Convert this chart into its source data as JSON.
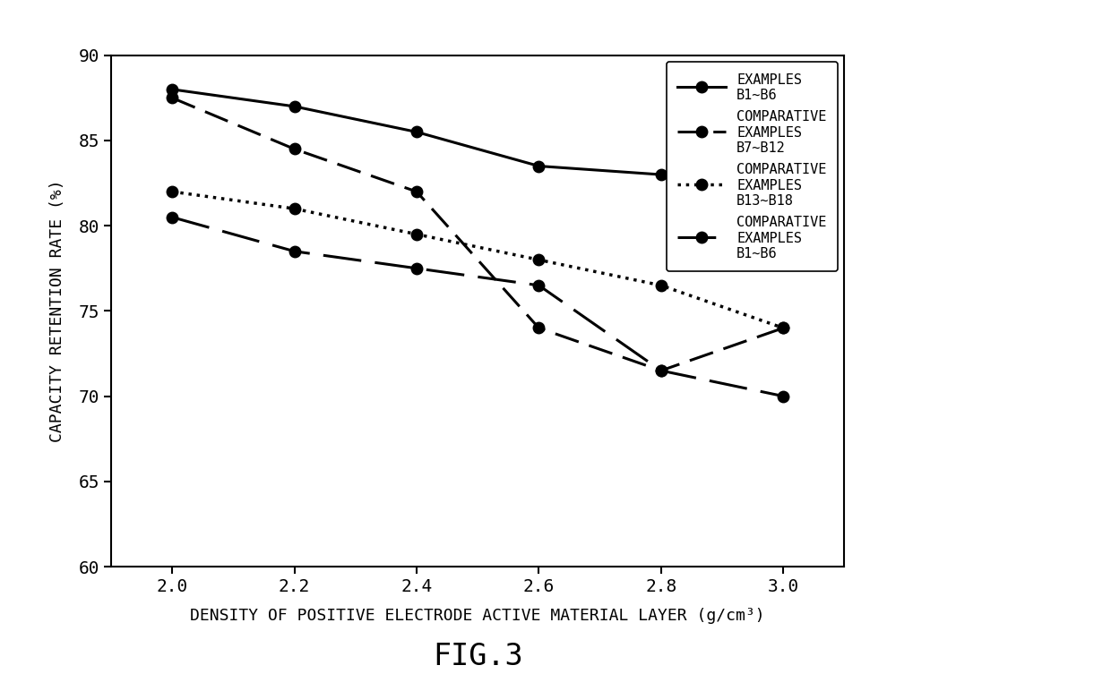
{
  "x": [
    2.0,
    2.2,
    2.4,
    2.6,
    2.8,
    3.0
  ],
  "series": [
    {
      "label": "EXAMPLES\nB1~B6",
      "y": [
        88.0,
        87.0,
        85.5,
        83.5,
        83.0,
        82.0
      ],
      "linestyle": "solid",
      "linewidth": 2.2,
      "marker": "o",
      "markersize": 9,
      "color": "#000000",
      "dashes": null
    },
    {
      "label": "COMPARATIVE\nEXAMPLES\nB7~B12",
      "y": [
        87.5,
        84.5,
        82.0,
        74.0,
        71.5,
        74.0
      ],
      "linestyle": "dashed",
      "linewidth": 2.2,
      "marker": "o",
      "markersize": 9,
      "color": "#000000",
      "dashes": [
        9,
        4
      ]
    },
    {
      "label": "COMPARATIVE\nEXAMPLES\nB13~B18",
      "y": [
        82.0,
        81.0,
        79.5,
        78.0,
        76.5,
        74.0
      ],
      "linestyle": "dotted",
      "linewidth": 2.5,
      "marker": "o",
      "markersize": 9,
      "color": "#000000",
      "dashes": null
    },
    {
      "label": "COMPARATIVE\nEXAMPLES\nB1~B6",
      "y": [
        80.5,
        78.5,
        77.5,
        76.5,
        71.5,
        70.0
      ],
      "linestyle": "longdash",
      "linewidth": 2.2,
      "marker": "o",
      "markersize": 9,
      "color": "#000000",
      "dashes": [
        14,
        5
      ]
    }
  ],
  "xlabel": "DENSITY OF POSITIVE ELECTRODE ACTIVE MATERIAL LAYER (g/cm³)",
  "ylabel": "CAPACITY RETENTION RATE (%)",
  "xlim": [
    1.9,
    3.1
  ],
  "ylim": [
    60,
    90
  ],
  "yticks": [
    60,
    65,
    70,
    75,
    80,
    85,
    90
  ],
  "xticks": [
    2.0,
    2.2,
    2.4,
    2.6,
    2.8,
    3.0
  ],
  "title": "FIG.3",
  "figsize": [
    12.4,
    7.72
  ],
  "dpi": 100,
  "background_color": "#ffffff"
}
